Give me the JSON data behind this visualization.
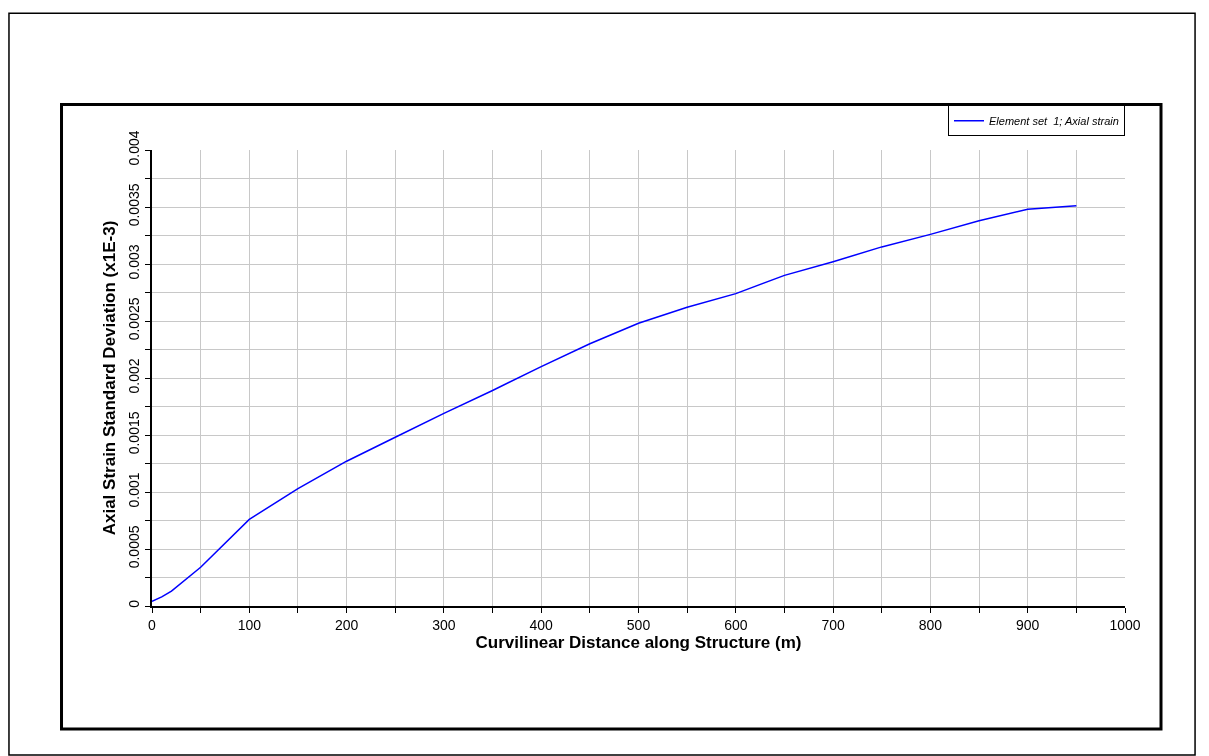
{
  "chart_data": {
    "type": "line",
    "xlabel": "Curvilinear Distance along Structure (m)",
    "ylabel": "Axial Strain Standard Deviation (x1E-3)",
    "series": [
      {
        "name": "Element set  1; Axial strain",
        "color": "#0000ff",
        "x": [
          0,
          10,
          20,
          50,
          100,
          150,
          200,
          250,
          300,
          350,
          400,
          450,
          500,
          550,
          600,
          650,
          700,
          750,
          800,
          850,
          900,
          950
        ],
        "values": [
          4e-05,
          8e-05,
          0.00013,
          0.00034,
          0.00076,
          0.00103,
          0.00127,
          0.00148,
          0.00169,
          0.00189,
          0.0021,
          0.0023,
          0.00248,
          0.00262,
          0.00274,
          0.0029,
          0.00302,
          0.00315,
          0.00326,
          0.00338,
          0.00348,
          0.00351
        ]
      }
    ],
    "xlim": [
      0,
      1000
    ],
    "ylim": [
      0,
      0.004
    ],
    "xticks": [
      0,
      {
        "value": 50,
        "label": null
      },
      100,
      {
        "value": 150,
        "label": null
      },
      200,
      {
        "value": 250,
        "label": null
      },
      300,
      {
        "value": 350,
        "label": null
      },
      400,
      {
        "value": 450,
        "label": null
      },
      500,
      {
        "value": 550,
        "label": null
      },
      600,
      {
        "value": 650,
        "label": null
      },
      700,
      {
        "value": 750,
        "label": null
      },
      800,
      {
        "value": 850,
        "label": null
      },
      900,
      {
        "value": 950,
        "label": null
      },
      1000
    ],
    "yticks": [
      0,
      {
        "value": 0.00025,
        "label": null
      },
      0.0005,
      {
        "value": 0.00075,
        "label": null
      },
      0.001,
      {
        "value": 0.00125,
        "label": null
      },
      0.0015,
      {
        "value": 0.00175,
        "label": null
      },
      0.002,
      {
        "value": 0.00225,
        "label": null
      },
      0.0025,
      {
        "value": 0.00275,
        "label": null
      },
      0.003,
      {
        "value": 0.00325,
        "label": null
      },
      0.0035,
      {
        "value": 0.00375,
        "label": null
      },
      0.004
    ],
    "grid": true,
    "legend": "top right",
    "marker": "none",
    "line_style": "solid"
  }
}
